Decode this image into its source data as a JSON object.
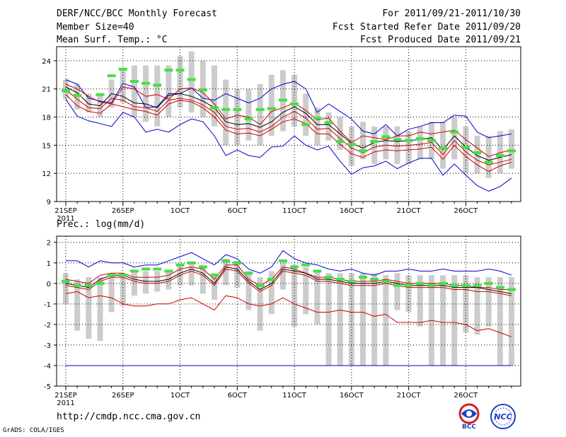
{
  "header": {
    "title": "DERF/NCC/BCC Monthly Forecast",
    "member_size": "Member Size=40",
    "variable_top": "Mean Surf. Temp.: °C",
    "period": "For 2011/09/21-2011/10/30",
    "started": "Fcst Started Refer Date 2011/09/20",
    "produced": "Fcst Produced Date 2011/09/21"
  },
  "variable_bottom": "Prec.: log(mm/d)",
  "footer": {
    "url": "http://cmdp.ncc.cma.gov.cn",
    "grads": "GrADS: COLA/IGES",
    "logo_left_text": "BCC",
    "logo_right_text": "NCC"
  },
  "colors": {
    "box": "#cccccc",
    "obs": "#44e044",
    "max": "#0000cc",
    "min": "#cc0000",
    "mean": "#000000",
    "grid": "#000000"
  },
  "chart_data": [
    {
      "type": "line",
      "title": "Mean Surf. Temp.: °C",
      "x_labels": [
        "21SEP",
        "26SEP",
        "1OCT",
        "6OCT",
        "11OCT",
        "16OCT",
        "21OCT",
        "26OCT"
      ],
      "x_sublabel": "2011",
      "x_label_days": [
        0,
        5,
        10,
        15,
        20,
        25,
        30,
        35
      ],
      "y_ticks": [
        9,
        12,
        15,
        18,
        21,
        24
      ],
      "ylim": [
        9,
        25.5
      ],
      "n_days": 40,
      "series": [
        {
          "name": "max",
          "values": [
            22.0,
            21.5,
            20.0,
            19.7,
            19.5,
            21.6,
            21.2,
            19.0,
            19.1,
            20.5,
            20.5,
            21.1,
            20.0,
            19.8,
            20.5,
            20.0,
            19.5,
            20.0,
            21.0,
            21.5,
            21.8,
            21.0,
            18.5,
            19.4,
            18.6,
            17.8,
            16.5,
            16.2,
            17.2,
            16.0,
            16.7,
            17.0,
            17.4,
            17.4,
            18.2,
            18.1,
            16.4,
            15.8,
            16.0,
            16.2
          ]
        },
        {
          "name": "upper",
          "values": [
            21.5,
            21.0,
            20.2,
            19.6,
            19.4,
            21.2,
            21.0,
            20.2,
            20.4,
            19.9,
            21.0,
            21.1,
            20.6,
            19.4,
            17.8,
            18.2,
            18.0,
            17.2,
            18.6,
            19.0,
            19.5,
            18.7,
            17.7,
            17.9,
            16.5,
            15.3,
            16.0,
            15.8,
            15.6,
            16.0,
            16.0,
            16.4,
            16.2,
            16.4,
            16.6,
            15.6,
            14.7,
            13.8,
            14.2,
            14.5
          ]
        },
        {
          "name": "mean",
          "values": [
            21.2,
            20.6,
            19.4,
            19.2,
            20.5,
            20.2,
            19.5,
            19.4,
            19.0,
            20.3,
            20.5,
            20.2,
            19.7,
            19.0,
            17.5,
            17.2,
            17.3,
            16.9,
            17.5,
            18.5,
            19.1,
            18.4,
            17.2,
            17.2,
            16.2,
            15.2,
            14.7,
            15.3,
            15.5,
            15.4,
            15.5,
            15.6,
            15.8,
            14.5,
            16.0,
            14.8,
            13.9,
            13.4,
            13.7,
            14.0
          ]
        },
        {
          "name": "lower",
          "values": [
            20.9,
            19.9,
            19.0,
            18.9,
            20.0,
            19.8,
            19.1,
            19.0,
            18.6,
            19.8,
            20.0,
            19.8,
            19.3,
            18.5,
            17.0,
            16.7,
            16.8,
            16.4,
            17.0,
            18.0,
            18.6,
            17.9,
            16.7,
            16.8,
            15.7,
            14.7,
            14.2,
            14.8,
            15.0,
            14.9,
            15.0,
            15.1,
            15.3,
            14.0,
            15.5,
            14.3,
            13.4,
            12.9,
            13.2,
            13.5
          ]
        },
        {
          "name": "min",
          "values": [
            20.4,
            19.2,
            18.6,
            18.4,
            19.4,
            19.1,
            18.8,
            18.6,
            18.2,
            19.4,
            19.8,
            19.6,
            19.0,
            18.0,
            16.6,
            16.2,
            16.3,
            16.0,
            16.7,
            17.5,
            17.8,
            17.3,
            16.2,
            16.2,
            15.1,
            14.1,
            13.7,
            14.3,
            14.5,
            14.4,
            14.5,
            14.6,
            14.8,
            13.5,
            15.0,
            13.8,
            12.9,
            12.2,
            12.8,
            13.2
          ]
        },
        {
          "name": "min_bottom",
          "values": [
            19.9,
            18.1,
            17.6,
            17.3,
            17.0,
            18.5,
            18.0,
            16.4,
            16.7,
            16.4,
            17.2,
            17.8,
            17.5,
            16.0,
            13.9,
            14.5,
            13.9,
            13.7,
            14.8,
            14.9,
            16.0,
            15.0,
            14.5,
            14.9,
            13.3,
            11.9,
            12.6,
            12.8,
            13.3,
            12.5,
            13.1,
            13.6,
            13.6,
            11.8,
            13.0,
            11.8,
            10.7,
            10.1,
            10.6,
            11.5
          ]
        }
      ],
      "boxes": [
        [
          19.9,
          22.0
        ],
        [
          18.8,
          21.5
        ],
        [
          18.5,
          20.5
        ],
        [
          18.0,
          20.5
        ],
        [
          19.0,
          22.0
        ],
        [
          19.5,
          23.0
        ],
        [
          18.0,
          23.5
        ],
        [
          17.5,
          23.5
        ],
        [
          17.0,
          23.5
        ],
        [
          18.0,
          23.5
        ],
        [
          19.0,
          24.5
        ],
        [
          18.5,
          25.0
        ],
        [
          18.0,
          24.0
        ],
        [
          17.0,
          23.5
        ],
        [
          15.0,
          22.0
        ],
        [
          15.0,
          21.0
        ],
        [
          15.5,
          21.0
        ],
        [
          15.0,
          21.5
        ],
        [
          16.0,
          22.5
        ],
        [
          16.5,
          23.0
        ],
        [
          17.0,
          22.5
        ],
        [
          16.0,
          20.5
        ],
        [
          15.0,
          19.0
        ],
        [
          15.5,
          18.5
        ],
        [
          14.5,
          18.0
        ],
        [
          12.8,
          17.0
        ],
        [
          13.5,
          17.5
        ],
        [
          13.0,
          17.0
        ],
        [
          13.5,
          17.0
        ],
        [
          13.0,
          17.0
        ],
        [
          13.0,
          16.5
        ],
        [
          13.5,
          17.0
        ],
        [
          13.5,
          17.5
        ],
        [
          12.5,
          17.5
        ],
        [
          13.5,
          18.0
        ],
        [
          12.0,
          17.0
        ],
        [
          12.0,
          16.0
        ],
        [
          11.5,
          16.0
        ],
        [
          12.0,
          16.5
        ],
        [
          12.5,
          16.7
        ]
      ],
      "obs": [
        20.8,
        20.3,
        null,
        20.4,
        22.4,
        23.1,
        21.8,
        21.6,
        21.4,
        23.0,
        23.0,
        22.0,
        20.9,
        19.0,
        18.8,
        18.8,
        17.8,
        18.8,
        18.9,
        19.8,
        19.4,
        17.2,
        17.9,
        17.4,
        15.4,
        15.1,
        14.4,
        15.4,
        15.9,
        15.6,
        15.5,
        15.7,
        15.5,
        14.7,
        16.4,
        14.8,
        14.2,
        13.2,
        13.9,
        14.4
      ]
    },
    {
      "type": "line",
      "title": "Prec.: log(mm/d)",
      "x_labels": [
        "21SEP",
        "26SEP",
        "1OCT",
        "6OCT",
        "11OCT",
        "16OCT",
        "21OCT",
        "26OCT"
      ],
      "x_sublabel": "2011",
      "x_label_days": [
        0,
        5,
        10,
        15,
        20,
        25,
        30,
        35
      ],
      "y_ticks": [
        -5,
        -4,
        -3,
        -2,
        -1,
        0,
        1,
        2
      ],
      "ylim": [
        -5,
        2.3
      ],
      "n_days": 40,
      "series": [
        {
          "name": "max",
          "values": [
            1.1,
            1.1,
            0.8,
            1.1,
            1.0,
            1.0,
            0.8,
            0.9,
            0.9,
            1.1,
            1.3,
            1.5,
            1.2,
            0.9,
            1.4,
            1.2,
            0.7,
            0.5,
            0.8,
            1.6,
            1.2,
            1.0,
            0.9,
            0.7,
            0.6,
            0.7,
            0.5,
            0.4,
            0.6,
            0.6,
            0.7,
            0.6,
            0.6,
            0.7,
            0.6,
            0.6,
            0.6,
            0.7,
            0.6,
            0.4
          ]
        },
        {
          "name": "upper",
          "values": [
            0.2,
            0.1,
            0.0,
            0.4,
            0.5,
            0.5,
            0.3,
            0.3,
            0.3,
            0.4,
            0.7,
            0.8,
            0.7,
            0.2,
            0.9,
            0.9,
            0.2,
            -0.1,
            0.2,
            0.8,
            0.7,
            0.5,
            0.3,
            0.3,
            0.2,
            0.1,
            0.1,
            0.1,
            0.2,
            0.1,
            0.0,
            0.0,
            0.0,
            0.0,
            -0.1,
            -0.1,
            -0.2,
            -0.2,
            -0.3,
            -0.3
          ]
        },
        {
          "name": "mean",
          "values": [
            0.0,
            -0.1,
            -0.2,
            0.2,
            0.4,
            0.4,
            0.2,
            0.1,
            0.1,
            0.2,
            0.5,
            0.7,
            0.5,
            0.0,
            0.8,
            0.7,
            0.1,
            -0.3,
            0.0,
            0.7,
            0.6,
            0.5,
            0.2,
            0.2,
            0.1,
            0.0,
            0.0,
            0.0,
            0.1,
            0.0,
            -0.1,
            -0.1,
            -0.1,
            -0.1,
            -0.2,
            -0.2,
            -0.2,
            -0.3,
            -0.4,
            -0.5
          ]
        },
        {
          "name": "lower",
          "values": [
            -0.1,
            -0.2,
            -0.3,
            0.1,
            0.3,
            0.3,
            0.1,
            0.0,
            0.0,
            0.1,
            0.4,
            0.6,
            0.4,
            -0.1,
            0.7,
            0.6,
            0.0,
            -0.4,
            -0.1,
            0.6,
            0.5,
            0.4,
            0.1,
            0.1,
            0.0,
            -0.1,
            -0.1,
            -0.1,
            0.0,
            -0.1,
            -0.2,
            -0.2,
            -0.2,
            -0.2,
            -0.3,
            -0.3,
            -0.4,
            -0.4,
            -0.5,
            -0.6
          ]
        },
        {
          "name": "min",
          "values": [
            -0.5,
            -0.4,
            -0.7,
            -0.6,
            -0.7,
            -1.0,
            -1.1,
            -1.1,
            -1.0,
            -1.0,
            -0.8,
            -0.7,
            -1.0,
            -1.3,
            -0.6,
            -0.7,
            -1.0,
            -1.1,
            -1.0,
            -0.7,
            -1.0,
            -1.2,
            -1.4,
            -1.4,
            -1.3,
            -1.4,
            -1.4,
            -1.6,
            -1.5,
            -1.9,
            -1.9,
            -1.9,
            -1.8,
            -1.9,
            -1.9,
            -2.0,
            -2.3,
            -2.2,
            -2.4,
            -2.6
          ]
        },
        {
          "name": "lowest",
          "values": [
            -4.0,
            -4.0,
            -4.0,
            -4.0,
            -4.0,
            -4.0,
            -4.0,
            -4.0,
            -4.0,
            -4.0,
            -4.0,
            -4.0,
            -4.0,
            -4.0,
            -4.0,
            -4.0,
            -4.0,
            -4.0,
            -4.0,
            -4.0,
            -4.0,
            -4.0,
            -4.0,
            -4.0,
            -4.0,
            -4.0,
            -4.0,
            -4.0,
            -4.0,
            -4.0,
            -4.0,
            -4.0,
            -4.0,
            -4.0,
            -4.0,
            -4.0,
            -4.0,
            -4.0,
            -4.0,
            -4.0
          ]
        }
      ],
      "boxes": [
        [
          -1.0,
          0.5
        ],
        [
          -2.3,
          0.2
        ],
        [
          -2.7,
          0.3
        ],
        [
          -2.8,
          0.3
        ],
        [
          -1.4,
          0.5
        ],
        [
          -1.1,
          0.5
        ],
        [
          -0.6,
          0.6
        ],
        [
          -0.5,
          0.6
        ],
        [
          -0.4,
          0.6
        ],
        [
          -0.3,
          0.6
        ],
        [
          -0.1,
          0.9
        ],
        [
          -0.1,
          1.0
        ],
        [
          -0.5,
          0.9
        ],
        [
          -0.8,
          0.5
        ],
        [
          -0.1,
          1.2
        ],
        [
          -0.2,
          1.1
        ],
        [
          -1.3,
          0.6
        ],
        [
          -2.3,
          0.3
        ],
        [
          -1.5,
          0.6
        ],
        [
          -0.3,
          1.0
        ],
        [
          -2.1,
          0.9
        ],
        [
          -1.5,
          0.8
        ],
        [
          -2.0,
          0.6
        ],
        [
          -4.0,
          0.5
        ],
        [
          -4.0,
          0.5
        ],
        [
          -4.0,
          0.5
        ],
        [
          -4.0,
          0.5
        ],
        [
          -4.0,
          0.5
        ],
        [
          -4.0,
          0.4
        ],
        [
          -1.3,
          0.5
        ],
        [
          -1.4,
          0.4
        ],
        [
          -2.1,
          0.4
        ],
        [
          -4.0,
          0.4
        ],
        [
          -4.0,
          0.4
        ],
        [
          -4.0,
          0.4
        ],
        [
          -2.4,
          0.4
        ],
        [
          -2.5,
          0.3
        ],
        [
          -2.1,
          0.3
        ],
        [
          -4.0,
          0.3
        ],
        [
          -4.0,
          0.3
        ]
      ],
      "obs": [
        0.1,
        -0.1,
        -0.1,
        0.0,
        0.4,
        0.4,
        0.6,
        0.7,
        0.7,
        0.6,
        0.9,
        1.0,
        0.8,
        0.4,
        1.1,
        1.0,
        0.5,
        -0.1,
        0.2,
        1.1,
        0.8,
        0.9,
        0.6,
        0.3,
        0.2,
        0.1,
        0.3,
        0.2,
        0.1,
        -0.1,
        -0.1,
        0.0,
        -0.1,
        0.0,
        -0.1,
        -0.1,
        -0.1,
        0.0,
        -0.2,
        -0.3
      ]
    }
  ]
}
